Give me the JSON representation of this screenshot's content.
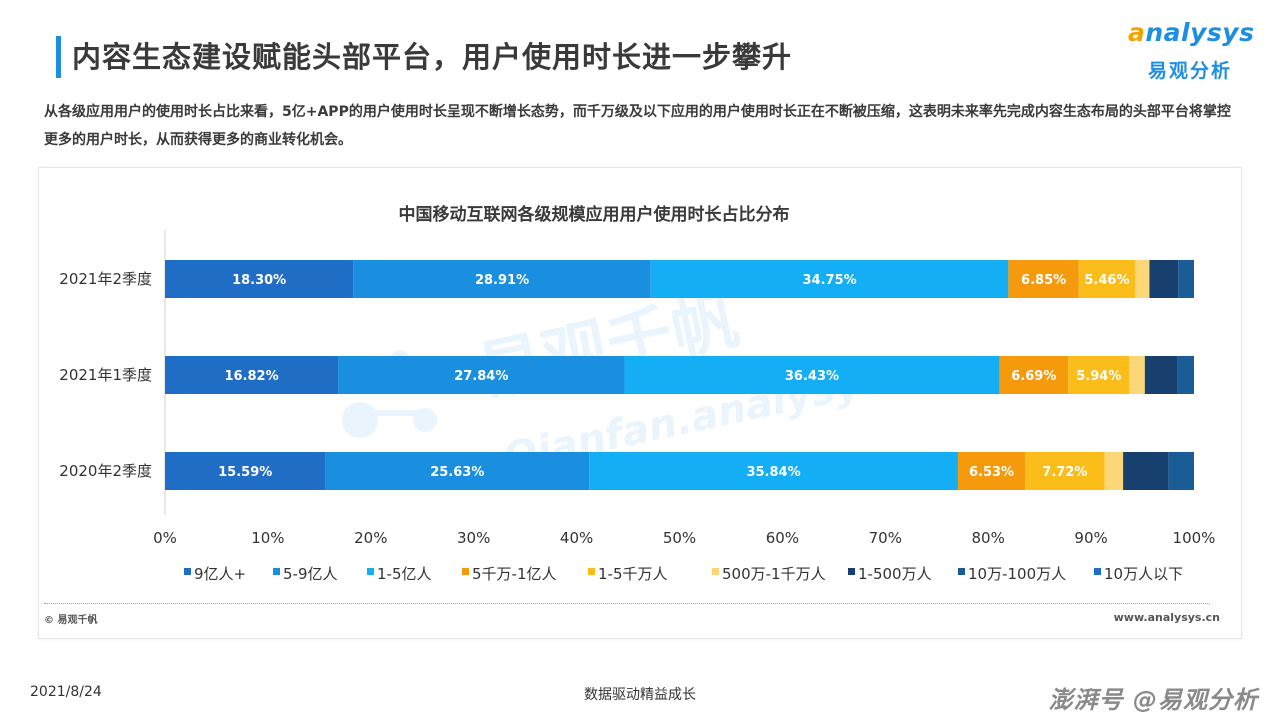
{
  "header": {
    "title": "内容生态建设赋能头部平台，用户使用时长进一步攀升",
    "logo_en_first": "a",
    "logo_en_rest": "nalysys",
    "logo_cn": "易观分析"
  },
  "intro": "从各级应用用户的使用时长占比来看，5亿+APP的用户使用时长呈现不断增长态势，而千万级及以下应用的用户使用时长正在不断被压缩，这表明未来率先完成内容生态布局的头部平台将掌控更多的用户时长，从而获得更多的商业转化机会。",
  "watermark": {
    "cn": "易观千帆",
    "en": "Qianfan.analysys"
  },
  "chart_data": {
    "type": "bar",
    "orientation": "horizontal",
    "stacked": true,
    "title": "中国移动互联网各级规模应用用户使用时长占比分布",
    "categories": [
      "2021年2季度",
      "2021年1季度",
      "2020年2季度"
    ],
    "xlim": [
      0,
      100
    ],
    "x_ticks": [
      "0%",
      "10%",
      "20%",
      "30%",
      "40%",
      "50%",
      "60%",
      "70%",
      "80%",
      "90%",
      "100%"
    ],
    "legend_position": "bottom",
    "series": [
      {
        "name": "9亿人+",
        "color": "#1f6dc4",
        "values": [
          18.3,
          16.82,
          15.59
        ],
        "labels": [
          "18.30%",
          "16.82%",
          "15.59%"
        ]
      },
      {
        "name": "5-9亿人",
        "color": "#1b8fdf",
        "values": [
          28.91,
          27.84,
          25.63
        ],
        "labels": [
          "28.91%",
          "27.84%",
          "25.63%"
        ]
      },
      {
        "name": "1-5亿人",
        "color": "#14aef5",
        "values": [
          34.75,
          36.43,
          35.84
        ],
        "labels": [
          "34.75%",
          "36.43%",
          "35.84%"
        ]
      },
      {
        "name": "5千万-1亿人",
        "color": "#f59a0c",
        "values": [
          6.85,
          6.69,
          6.53
        ],
        "labels": [
          "6.85%",
          "6.69%",
          "6.53%"
        ]
      },
      {
        "name": "1-5千万人",
        "color": "#fbbd1a",
        "values": [
          5.46,
          5.94,
          7.72
        ],
        "labels": [
          "5.46%",
          "5.94%",
          "7.72%"
        ]
      },
      {
        "name": "500万-1千万人",
        "color": "#fcd778",
        "values": [
          1.4,
          1.5,
          1.8
        ],
        "labels": [
          "",
          "",
          ""
        ]
      },
      {
        "name": "1-500万人",
        "color": "#17406f",
        "values": [
          2.8,
          3.2,
          4.4
        ],
        "labels": [
          "",
          "",
          ""
        ]
      },
      {
        "name": "10万-100万人",
        "color": "#1a5c95",
        "values": [
          1.53,
          1.58,
          2.49
        ],
        "labels": [
          "",
          "",
          ""
        ]
      },
      {
        "name": "10万人以下",
        "color": "#1f6dc4",
        "values": [
          0,
          0,
          0
        ],
        "labels": [
          "",
          "",
          ""
        ]
      }
    ]
  },
  "source": {
    "copyright": "© 易观千帆",
    "site": "www.analysys.cn"
  },
  "footer": {
    "date": "2021/8/24",
    "slogan": "数据驱动精益成长",
    "brand": "澎湃号 @易观分析"
  }
}
